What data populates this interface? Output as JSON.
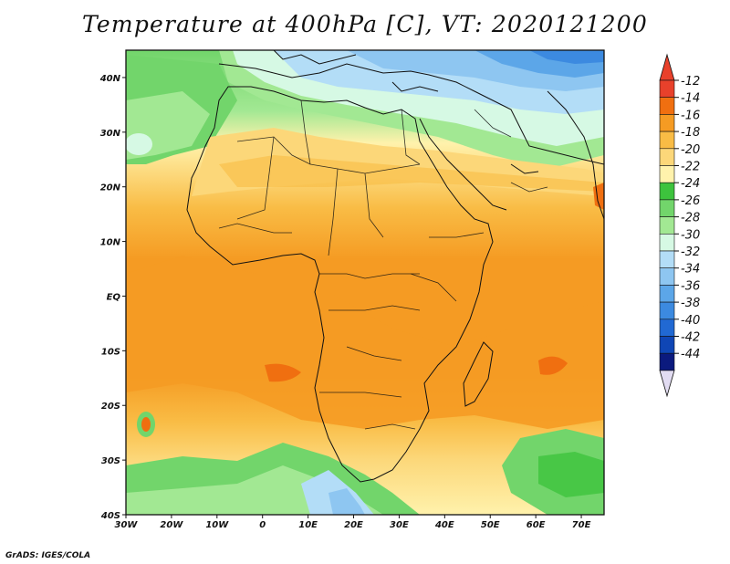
{
  "title": "Temperature at 400hPa [C], VT: 2020121200",
  "credit": "GrADS: IGES/COLA",
  "map": {
    "lon_range": [
      -30,
      75
    ],
    "lat_range": [
      -40,
      45
    ],
    "lat_ticks": [
      {
        "value": 40,
        "label": "40N"
      },
      {
        "value": 30,
        "label": "30N"
      },
      {
        "value": 20,
        "label": "20N"
      },
      {
        "value": 10,
        "label": "10N"
      },
      {
        "value": 0,
        "label": "EQ"
      },
      {
        "value": -10,
        "label": "10S"
      },
      {
        "value": -20,
        "label": "20S"
      },
      {
        "value": -30,
        "label": "30S"
      },
      {
        "value": -40,
        "label": "40S"
      }
    ],
    "lon_ticks": [
      {
        "value": -30,
        "label": "30W"
      },
      {
        "value": -20,
        "label": "20W"
      },
      {
        "value": -10,
        "label": "10W"
      },
      {
        "value": 0,
        "label": "0"
      },
      {
        "value": 10,
        "label": "10E"
      },
      {
        "value": 20,
        "label": "20E"
      },
      {
        "value": 30,
        "label": "30E"
      },
      {
        "value": 40,
        "label": "40E"
      },
      {
        "value": 50,
        "label": "50E"
      },
      {
        "value": 60,
        "label": "60E"
      },
      {
        "value": 70,
        "label": "70E"
      }
    ]
  },
  "colorbar": {
    "labels": [
      "-12",
      "-14",
      "-16",
      "-18",
      "-20",
      "-22",
      "-24",
      "-26",
      "-28",
      "-30",
      "-32",
      "-34",
      "-36",
      "-38",
      "-40",
      "-42",
      "-44"
    ],
    "colors": [
      "#e8412b",
      "#f06f10",
      "#f59b23",
      "#f9bc45",
      "#fcd779",
      "#fff2ac",
      "#3dc33d",
      "#72d56b",
      "#a2e893",
      "#d6f9e4",
      "#b3ddf7",
      "#8ec6f1",
      "#5ca6e8",
      "#3c8ae0",
      "#2169d3",
      "#0f46b5",
      "#0b1a7e"
    ],
    "top_triangle_color": "#e8412b",
    "bottom_triangle_color": "#e2dcf2"
  }
}
